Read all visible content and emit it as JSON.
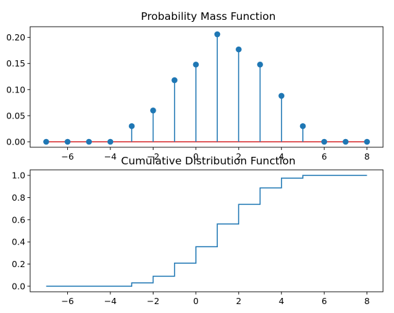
{
  "chart_data": [
    {
      "type": "stem",
      "title": "Probability Mass Function",
      "xlabel": "",
      "ylabel": "",
      "xlim": [
        -7.75,
        8.75
      ],
      "ylim": [
        -0.0105,
        0.2205
      ],
      "x_ticks": [
        -6,
        -4,
        -2,
        0,
        2,
        4,
        6,
        8
      ],
      "x_tick_labels": [
        "−6",
        "−4",
        "−2",
        "0",
        "2",
        "4",
        "6",
        "8"
      ],
      "y_ticks": [
        0.0,
        0.05,
        0.1,
        0.15,
        0.2
      ],
      "y_tick_labels": [
        "0.00",
        "0.05",
        "0.10",
        "0.15",
        "0.20"
      ],
      "grid": false,
      "x": [
        -7,
        -6,
        -5,
        -4,
        -3,
        -2,
        -1,
        0,
        1,
        2,
        3,
        4,
        5,
        6,
        7,
        8
      ],
      "values": [
        0.0,
        0.0,
        0.0,
        0.0,
        0.03,
        0.06,
        0.118,
        0.148,
        0.206,
        0.177,
        0.148,
        0.088,
        0.03,
        0.0,
        0.0,
        0.0
      ],
      "marker_color": "#1f77b4",
      "stem_color": "#1f77b4",
      "baseline": 0,
      "baseline_color": "#d62728"
    },
    {
      "type": "step",
      "title": "Cumulative Distribution Function",
      "xlabel": "",
      "ylabel": "",
      "xlim": [
        -7.75,
        8.75
      ],
      "ylim": [
        -0.05,
        1.05
      ],
      "x_ticks": [
        -6,
        -4,
        -2,
        0,
        2,
        4,
        6,
        8
      ],
      "x_tick_labels": [
        "−6",
        "−4",
        "−2",
        "0",
        "2",
        "4",
        "6",
        "8"
      ],
      "y_ticks": [
        0.0,
        0.2,
        0.4,
        0.6,
        0.8,
        1.0
      ],
      "y_tick_labels": [
        "0.0",
        "0.2",
        "0.4",
        "0.6",
        "0.8",
        "1.0"
      ],
      "grid": false,
      "x": [
        -7,
        -6,
        -5,
        -4,
        -3,
        -2,
        -1,
        0,
        1,
        2,
        3,
        4,
        5,
        6,
        7,
        8
      ],
      "values": [
        0.0,
        0.0,
        0.0,
        0.0,
        0.03,
        0.09,
        0.208,
        0.356,
        0.562,
        0.739,
        0.887,
        0.975,
        1.0,
        1.0,
        1.0,
        1.0
      ],
      "line_color": "#1f77b4"
    }
  ]
}
